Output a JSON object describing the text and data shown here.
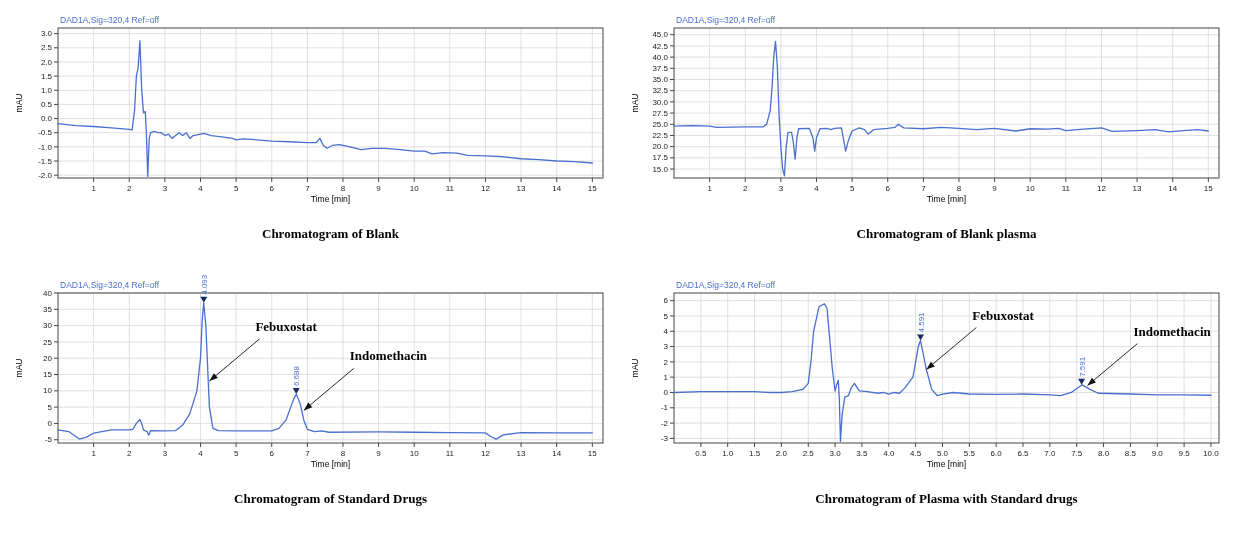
{
  "chart_data": [
    {
      "type": "line",
      "title": "Chromatogram of Blank",
      "subtitle": "DAD1A,Sig=320,4  Ref=off",
      "xlabel": "Time [min]",
      "ylabel": "mAU",
      "grid": true,
      "marker": "none",
      "line_style": "solid",
      "xlim": [
        0,
        15.3
      ],
      "xticks": [
        1,
        2,
        3,
        4,
        5,
        6,
        7,
        8,
        9,
        10,
        11,
        12,
        13,
        14,
        15
      ],
      "ylim": [
        -2.1,
        3.2
      ],
      "yticks": [
        {
          "value": -2,
          "label": "-2.0"
        },
        -1.5,
        {
          "value": -1,
          "label": "-1.0"
        },
        -0.5,
        {
          "value": 0,
          "label": "0.0"
        },
        0.5,
        {
          "value": 1,
          "label": "1.0"
        },
        1.5,
        {
          "value": 2,
          "label": "2.0"
        },
        2.5,
        {
          "value": 3,
          "label": "3.0"
        }
      ],
      "series": [
        {
          "color": "#4a6fd0",
          "x": [
            0,
            0.5,
            1,
            1.5,
            2,
            2.08,
            2.15,
            2.2,
            2.25,
            2.3,
            2.35,
            2.4,
            2.45,
            2.48,
            2.52,
            2.56,
            2.6,
            2.7,
            2.8,
            2.9,
            3,
            3.1,
            3.2,
            3.3,
            3.4,
            3.5,
            3.6,
            3.7,
            3.8,
            4,
            4.1,
            4.3,
            4.6,
            4.9,
            5,
            5.2,
            5.6,
            6,
            6.5,
            7,
            7.25,
            7.35,
            7.45,
            7.55,
            7.7,
            7.9,
            8.2,
            8.5,
            8.8,
            9.2,
            9.6,
            10,
            10.3,
            10.5,
            10.8,
            11.2,
            11.5,
            12,
            12.5,
            13,
            13.5,
            14,
            14.5,
            15
          ],
          "values": [
            -0.18,
            -0.25,
            -0.28,
            -0.33,
            -0.38,
            -0.4,
            0.3,
            1.5,
            1.8,
            2.75,
            1,
            0.2,
            0.25,
            -0.5,
            -2.05,
            -0.7,
            -0.5,
            -0.45,
            -0.5,
            -0.5,
            -0.6,
            -0.55,
            -0.7,
            -0.6,
            -0.5,
            -0.6,
            -0.5,
            -0.7,
            -0.6,
            -0.55,
            -0.52,
            -0.6,
            -0.65,
            -0.7,
            -0.75,
            -0.72,
            -0.75,
            -0.8,
            -0.82,
            -0.85,
            -0.85,
            -0.7,
            -0.95,
            -1.05,
            -0.95,
            -0.92,
            -1,
            -1.1,
            -1.05,
            -1.05,
            -1.1,
            -1.15,
            -1.15,
            -1.25,
            -1.2,
            -1.22,
            -1.3,
            -1.32,
            -1.35,
            -1.42,
            -1.45,
            -1.5,
            -1.52,
            -1.57
          ]
        }
      ]
    },
    {
      "type": "line",
      "title": "Chromatogram of Blank plasma",
      "subtitle": "DAD1A,Sig=320,4  Ref=off",
      "xlabel": "Time [min]",
      "ylabel": "mAU",
      "grid": true,
      "marker": "none",
      "line_style": "solid",
      "xlim": [
        0,
        15.3
      ],
      "xticks": [
        1,
        2,
        3,
        4,
        5,
        6,
        7,
        8,
        9,
        10,
        11,
        12,
        13,
        14,
        15
      ],
      "ylim": [
        13,
        46.5
      ],
      "yticks": [
        {
          "value": 15,
          "label": "15.0"
        },
        17.5,
        {
          "value": 20,
          "label": "20.0"
        },
        22.5,
        {
          "value": 25,
          "label": "25.0"
        },
        27.5,
        {
          "value": 30,
          "label": "30.0"
        },
        32.5,
        {
          "value": 35,
          "label": "35.0"
        },
        37.5,
        {
          "value": 40,
          "label": "40.0"
        },
        42.5,
        {
          "value": 45,
          "label": "45.0"
        }
      ],
      "series": [
        {
          "color": "#4a6fd0",
          "x": [
            0,
            0.5,
            1,
            1.2,
            2,
            2.5,
            2.6,
            2.7,
            2.75,
            2.8,
            2.85,
            2.9,
            2.95,
            3,
            3.05,
            3.1,
            3.15,
            3.2,
            3.3,
            3.35,
            3.4,
            3.45,
            3.5,
            3.8,
            3.9,
            3.95,
            4,
            4.1,
            4.3,
            4.4,
            4.5,
            4.7,
            4.75,
            4.82,
            4.9,
            5,
            5.2,
            5.35,
            5.45,
            5.6,
            6,
            6.2,
            6.3,
            6.45,
            7,
            7.5,
            8,
            8.5,
            9,
            9.6,
            10,
            10.5,
            10.8,
            11,
            11.5,
            12,
            12.3,
            13,
            13.5,
            13.9,
            14.3,
            14.7,
            15
          ],
          "values": [
            24.6,
            24.7,
            24.6,
            24.3,
            24.4,
            24.4,
            25,
            28,
            33,
            40,
            43.5,
            38,
            27,
            20,
            15,
            13.5,
            20,
            23.2,
            23.2,
            21,
            17.2,
            22,
            24,
            24.1,
            22,
            19,
            22,
            24,
            24.1,
            23.8,
            24.1,
            24.2,
            22,
            19,
            21.5,
            23.5,
            24.2,
            23.8,
            22.8,
            23.8,
            24.1,
            24.3,
            25,
            24.2,
            24,
            24.3,
            24.1,
            23.8,
            24.1,
            23.5,
            24,
            23.9,
            24.1,
            23.6,
            23.9,
            24.2,
            23.4,
            23.6,
            23.8,
            23.3,
            23.6,
            23.8,
            23.5
          ]
        }
      ]
    },
    {
      "type": "line",
      "title": "Chromatogram of Standard Drugs",
      "subtitle": "DAD1A,Sig=320,4  Ref=off",
      "xlabel": "Time [min]",
      "ylabel": "mAU",
      "grid": true,
      "marker": "none",
      "line_style": "solid",
      "xlim": [
        0,
        15.3
      ],
      "xticks": [
        1,
        2,
        3,
        4,
        5,
        6,
        7,
        8,
        9,
        10,
        11,
        12,
        13,
        14,
        15
      ],
      "ylim": [
        -6,
        40
      ],
      "yticks": [
        -5,
        0,
        5,
        10,
        15,
        20,
        25,
        30,
        35,
        40
      ],
      "annotations": [
        {
          "text": "4.093",
          "x": 4.093,
          "y": 37
        },
        {
          "text": "Febuxostat",
          "x": 4.25,
          "y": 13
        },
        {
          "text": "6.688",
          "x": 6.688,
          "y": 9
        },
        {
          "text": "Indomethacin",
          "x": 6.9,
          "y": 4
        }
      ],
      "series": [
        {
          "color": "#4a6fd0",
          "x": [
            0,
            0.3,
            0.6,
            0.8,
            1,
            1.5,
            2,
            2.1,
            2.2,
            2.3,
            2.35,
            2.4,
            2.5,
            2.55,
            2.6,
            3,
            3.3,
            3.5,
            3.7,
            3.9,
            4,
            4.05,
            4.09,
            4.15,
            4.25,
            4.35,
            4.5,
            5,
            6,
            6.2,
            6.4,
            6.6,
            6.69,
            6.8,
            6.9,
            7,
            7.2,
            7.4,
            7.6,
            9,
            10,
            11,
            12,
            12.15,
            12.3,
            12.5,
            13,
            14,
            15
          ],
          "values": [
            -2,
            -2.5,
            -4.8,
            -4.2,
            -3,
            -2,
            -2,
            -1.8,
            0,
            1.2,
            0,
            -2,
            -2.5,
            -3.6,
            -2.2,
            -2.3,
            -2.2,
            -0.5,
            3,
            10,
            20,
            32,
            37,
            30,
            5,
            -1.5,
            -2.2,
            -2.3,
            -2.3,
            -1.5,
            1,
            7,
            9,
            6,
            1,
            -1.8,
            -2.5,
            -2.3,
            -2.7,
            -2.6,
            -2.7,
            -2.8,
            -2.9,
            -4,
            -4.8,
            -3.5,
            -2.8,
            -2.9,
            -2.9
          ]
        }
      ]
    },
    {
      "type": "line",
      "title": "Chromatogram of Plasma with Standard drugs",
      "subtitle": "DAD1A,Sig=320,4  Ref=off",
      "xlabel": "Time [min]",
      "ylabel": "mAU",
      "grid": true,
      "marker": "none",
      "line_style": "solid",
      "xlim": [
        0,
        10.15
      ],
      "xticks": [
        0.5,
        {
          "value": 1,
          "label": "1.0"
        },
        1.5,
        {
          "value": 2,
          "label": "2.0"
        },
        2.5,
        {
          "value": 3,
          "label": "3.0"
        },
        3.5,
        {
          "value": 4,
          "label": "4.0"
        },
        4.5,
        {
          "value": 5,
          "label": "5.0"
        },
        5.5,
        {
          "value": 6,
          "label": "6.0"
        },
        6.5,
        {
          "value": 7,
          "label": "7.0"
        },
        7.5,
        {
          "value": 8,
          "label": "8.0"
        },
        8.5,
        {
          "value": 9,
          "label": "9.0"
        },
        9.5,
        {
          "value": 10,
          "label": "10.0"
        }
      ],
      "ylim": [
        -3.3,
        6.5
      ],
      "yticks": [
        -3,
        -2,
        -1,
        0,
        1,
        2,
        3,
        4,
        5,
        6
      ],
      "annotations": [
        {
          "text": "4.591",
          "x": 4.591,
          "y": 3.4
        },
        {
          "text": "Febuxostat",
          "x": 4.7,
          "y": 1.5
        },
        {
          "text": "7.591",
          "x": 7.591,
          "y": 0.5
        },
        {
          "text": "Indomethacin",
          "x": 7.7,
          "y": 0.45
        }
      ],
      "series": [
        {
          "color": "#4a6fd0",
          "x": [
            0,
            0.5,
            1,
            1.5,
            1.8,
            2,
            2.2,
            2.4,
            2.5,
            2.55,
            2.6,
            2.7,
            2.8,
            2.85,
            2.9,
            2.95,
            3,
            3.03,
            3.06,
            3.08,
            3.1,
            3.13,
            3.18,
            3.25,
            3.3,
            3.36,
            3.45,
            3.6,
            3.8,
            3.9,
            4,
            4.1,
            4.2,
            4.3,
            4.45,
            4.55,
            4.59,
            4.7,
            4.8,
            4.9,
            5,
            5.2,
            5.5,
            6,
            6.5,
            7,
            7.2,
            7.4,
            7.6,
            7.75,
            7.9,
            8.5,
            9,
            9.5,
            10
          ],
          "values": [
            0,
            0.05,
            0.05,
            0.05,
            0,
            0,
            0.05,
            0.2,
            0.6,
            2,
            4,
            5.6,
            5.8,
            5.5,
            3.5,
            1.5,
            0.1,
            0.5,
            0.8,
            -0.5,
            -3.2,
            -1.5,
            -0.3,
            -0.2,
            0.3,
            0.6,
            0.1,
            0.05,
            -0.05,
            0,
            -0.1,
            0,
            -0.05,
            0.3,
            1,
            3,
            3.4,
            1.5,
            0.2,
            -0.2,
            -0.1,
            0,
            -0.1,
            -0.12,
            -0.1,
            -0.15,
            -0.2,
            0,
            0.5,
            0.2,
            -0.05,
            -0.1,
            -0.15,
            -0.15,
            -0.18
          ]
        }
      ]
    }
  ]
}
